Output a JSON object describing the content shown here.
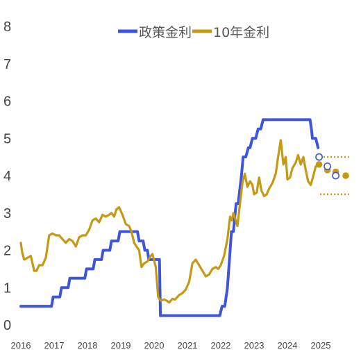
{
  "chart_data": {
    "type": "line",
    "title": "",
    "xlabel": "",
    "ylabel": "",
    "xlim": [
      2016.0,
      2026.0
    ],
    "ylim": [
      0,
      8
    ],
    "y_ticks": [
      "0",
      "1",
      "2",
      "3",
      "4",
      "5",
      "6",
      "7",
      "8"
    ],
    "x_ticks": [
      {
        "value": 2016,
        "label": "2016"
      },
      {
        "value": 2017,
        "label": "2017"
      },
      {
        "value": 2018,
        "label": "2018"
      },
      {
        "value": 2019,
        "label": "2019"
      },
      {
        "value": 2020,
        "label": "2020"
      },
      {
        "value": 2021,
        "label": "2021"
      },
      {
        "value": 2022,
        "label": "2022"
      },
      {
        "value": 2023,
        "label": "2023"
      },
      {
        "value": 2024,
        "label": "2024"
      },
      {
        "value": 2025,
        "label": "2025"
      }
    ],
    "grid": false,
    "legend_position": "top-center",
    "series": [
      {
        "name": "政策金利",
        "color": "#3f55d9",
        "points": [
          [
            2016.0,
            0.5
          ],
          [
            2016.92,
            0.5
          ],
          [
            2016.97,
            0.75
          ],
          [
            2017.17,
            0.75
          ],
          [
            2017.22,
            1.0
          ],
          [
            2017.42,
            1.0
          ],
          [
            2017.47,
            1.25
          ],
          [
            2017.92,
            1.25
          ],
          [
            2017.97,
            1.5
          ],
          [
            2018.17,
            1.5
          ],
          [
            2018.22,
            1.75
          ],
          [
            2018.42,
            1.75
          ],
          [
            2018.47,
            2.0
          ],
          [
            2018.67,
            2.0
          ],
          [
            2018.72,
            2.25
          ],
          [
            2018.92,
            2.25
          ],
          [
            2018.97,
            2.5
          ],
          [
            2019.5,
            2.5
          ],
          [
            2019.55,
            2.25
          ],
          [
            2019.67,
            2.25
          ],
          [
            2019.72,
            2.0
          ],
          [
            2019.8,
            2.0
          ],
          [
            2019.84,
            1.75
          ],
          [
            2020.16,
            1.75
          ],
          [
            2020.19,
            0.25
          ],
          [
            2021.97,
            0.25
          ],
          [
            2022.04,
            0.5
          ],
          [
            2022.12,
            0.5
          ],
          [
            2022.2,
            1.0
          ],
          [
            2022.32,
            2.5
          ],
          [
            2022.38,
            2.5
          ],
          [
            2022.46,
            3.25
          ],
          [
            2022.52,
            3.25
          ],
          [
            2022.62,
            4.0
          ],
          [
            2022.67,
            4.5
          ],
          [
            2022.75,
            4.5
          ],
          [
            2022.83,
            4.75
          ],
          [
            2022.88,
            4.75
          ],
          [
            2022.95,
            5.0
          ],
          [
            2023.05,
            5.0
          ],
          [
            2023.12,
            5.25
          ],
          [
            2023.2,
            5.25
          ],
          [
            2023.27,
            5.5
          ],
          [
            2024.68,
            5.5
          ],
          [
            2024.72,
            5.25
          ],
          [
            2024.75,
            5.0
          ],
          [
            2024.85,
            5.0
          ],
          [
            2024.92,
            4.75
          ]
        ],
        "projection_points": [
          [
            2024.95,
            4.5
          ],
          [
            2025.2,
            4.25
          ],
          [
            2025.45,
            4.0
          ]
        ]
      },
      {
        "name": "10年金利",
        "color": "#c49a14",
        "points": [
          [
            2016.0,
            2.2
          ],
          [
            2016.04,
            1.95
          ],
          [
            2016.1,
            1.75
          ],
          [
            2016.2,
            1.8
          ],
          [
            2016.3,
            1.85
          ],
          [
            2016.4,
            1.45
          ],
          [
            2016.47,
            1.45
          ],
          [
            2016.55,
            1.6
          ],
          [
            2016.65,
            1.6
          ],
          [
            2016.75,
            1.8
          ],
          [
            2016.85,
            2.4
          ],
          [
            2016.95,
            2.45
          ],
          [
            2017.05,
            2.4
          ],
          [
            2017.15,
            2.4
          ],
          [
            2017.25,
            2.3
          ],
          [
            2017.35,
            2.2
          ],
          [
            2017.45,
            2.3
          ],
          [
            2017.55,
            2.25
          ],
          [
            2017.65,
            2.1
          ],
          [
            2017.75,
            2.35
          ],
          [
            2017.85,
            2.4
          ],
          [
            2017.95,
            2.4
          ],
          [
            2018.05,
            2.55
          ],
          [
            2018.15,
            2.8
          ],
          [
            2018.25,
            2.85
          ],
          [
            2018.35,
            2.75
          ],
          [
            2018.45,
            2.95
          ],
          [
            2018.55,
            2.9
          ],
          [
            2018.65,
            2.95
          ],
          [
            2018.72,
            3.0
          ],
          [
            2018.8,
            2.9
          ],
          [
            2018.87,
            3.1
          ],
          [
            2018.95,
            3.15
          ],
          [
            2019.05,
            2.95
          ],
          [
            2019.15,
            2.7
          ],
          [
            2019.25,
            2.65
          ],
          [
            2019.32,
            2.5
          ],
          [
            2019.4,
            2.2
          ],
          [
            2019.47,
            2.1
          ],
          [
            2019.55,
            2.0
          ],
          [
            2019.62,
            1.55
          ],
          [
            2019.7,
            1.65
          ],
          [
            2019.8,
            1.7
          ],
          [
            2019.9,
            1.85
          ],
          [
            2019.95,
            1.9
          ],
          [
            2020.05,
            1.55
          ],
          [
            2020.12,
            0.75
          ],
          [
            2020.2,
            0.65
          ],
          [
            2020.3,
            0.68
          ],
          [
            2020.38,
            0.65
          ],
          [
            2020.45,
            0.6
          ],
          [
            2020.55,
            0.7
          ],
          [
            2020.63,
            0.68
          ],
          [
            2020.75,
            0.8
          ],
          [
            2020.85,
            0.85
          ],
          [
            2020.95,
            0.95
          ],
          [
            2021.05,
            1.15
          ],
          [
            2021.15,
            1.65
          ],
          [
            2021.25,
            1.75
          ],
          [
            2021.35,
            1.6
          ],
          [
            2021.45,
            1.45
          ],
          [
            2021.55,
            1.3
          ],
          [
            2021.65,
            1.35
          ],
          [
            2021.75,
            1.5
          ],
          [
            2021.85,
            1.55
          ],
          [
            2021.92,
            1.5
          ],
          [
            2022.0,
            1.6
          ],
          [
            2022.1,
            1.85
          ],
          [
            2022.2,
            2.3
          ],
          [
            2022.28,
            2.9
          ],
          [
            2022.33,
            2.8
          ],
          [
            2022.38,
            3.0
          ],
          [
            2022.45,
            2.8
          ],
          [
            2022.5,
            2.65
          ],
          [
            2022.57,
            3.2
          ],
          [
            2022.65,
            3.8
          ],
          [
            2022.72,
            4.05
          ],
          [
            2022.8,
            3.7
          ],
          [
            2022.88,
            3.85
          ],
          [
            2022.95,
            3.75
          ],
          [
            2023.0,
            3.5
          ],
          [
            2023.08,
            3.55
          ],
          [
            2023.15,
            3.95
          ],
          [
            2023.22,
            3.6
          ],
          [
            2023.3,
            3.45
          ],
          [
            2023.38,
            3.5
          ],
          [
            2023.45,
            3.65
          ],
          [
            2023.55,
            3.8
          ],
          [
            2023.65,
            4.05
          ],
          [
            2023.73,
            4.55
          ],
          [
            2023.8,
            4.95
          ],
          [
            2023.88,
            4.3
          ],
          [
            2023.95,
            4.5
          ],
          [
            2024.0,
            3.9
          ],
          [
            2024.08,
            3.95
          ],
          [
            2024.15,
            4.2
          ],
          [
            2024.25,
            4.35
          ],
          [
            2024.32,
            4.55
          ],
          [
            2024.4,
            4.3
          ],
          [
            2024.48,
            4.5
          ],
          [
            2024.55,
            4.15
          ],
          [
            2024.62,
            3.85
          ],
          [
            2024.7,
            3.75
          ],
          [
            2024.78,
            4.0
          ],
          [
            2024.85,
            4.25
          ],
          [
            2024.92,
            4.3
          ]
        ],
        "projection_points": [
          [
            2024.95,
            4.3
          ],
          [
            2025.2,
            4.15
          ],
          [
            2025.45,
            4.1
          ],
          [
            2025.75,
            4.0
          ]
        ],
        "projection_range": {
          "x": [
            2024.98,
            2025.85
          ],
          "high": 4.5,
          "low": 3.5
        }
      }
    ]
  }
}
